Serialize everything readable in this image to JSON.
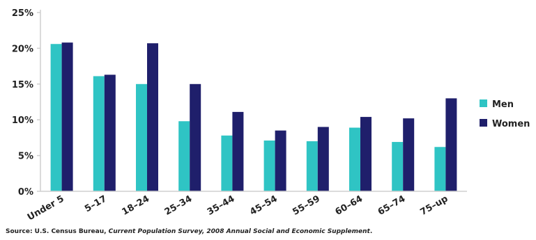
{
  "chart_data": {
    "type": "bar",
    "categories": [
      "Under 5",
      "5–17",
      "18–24",
      "25–34",
      "35–44",
      "45–54",
      "55–59",
      "60–64",
      "65–74",
      "75–up"
    ],
    "series": [
      {
        "name": "Men",
        "values": [
          20.6,
          16.1,
          15.0,
          9.8,
          7.8,
          7.1,
          7.0,
          8.9,
          6.9,
          6.2
        ]
      },
      {
        "name": "Women",
        "values": [
          20.8,
          16.3,
          20.7,
          15.0,
          11.1,
          8.5,
          9.0,
          10.4,
          10.2,
          13.0
        ]
      }
    ],
    "y_ticks": [
      "0%",
      "5%",
      "10%",
      "15%",
      "20%",
      "25%"
    ],
    "ylim": [
      0,
      25
    ],
    "grid": false,
    "legend_position": "right"
  },
  "colors": {
    "Men": "#2fc4c4",
    "Women": "#1f1f6b",
    "axis": "#cfcfcf"
  },
  "source": {
    "prefix": "Source: U.S. Census Bureau, ",
    "italic": "Current Population Survey, 2008 Annual Social and Economic Supplement",
    "suffix": "."
  }
}
